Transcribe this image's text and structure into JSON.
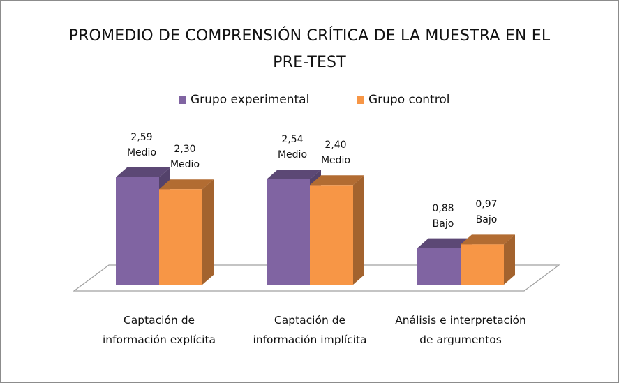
{
  "chart_data": {
    "type": "bar3d",
    "title": "PROMEDIO DE COMPRENSIÓN CRÍTICA DE LA MUESTRA EN EL PRE-TEST",
    "categories": [
      "Captación de información explícita",
      "Captación de información implícita",
      "Análisis e interpretación de argumentos"
    ],
    "series": [
      {
        "name": "Grupo experimental",
        "color": "#8064a2",
        "values": [
          2.59,
          2.54,
          0.88
        ],
        "value_labels": [
          "2,59",
          "2,54",
          "0,88"
        ],
        "levels": [
          "Medio",
          "Medio",
          "Bajo"
        ]
      },
      {
        "name": "Grupo control",
        "color": "#f79646",
        "values": [
          2.3,
          2.4,
          0.97
        ],
        "value_labels": [
          "2,30",
          "2,40",
          "0,97"
        ],
        "levels": [
          "Medio",
          "Medio",
          "Bajo"
        ]
      }
    ],
    "legend": "top"
  }
}
